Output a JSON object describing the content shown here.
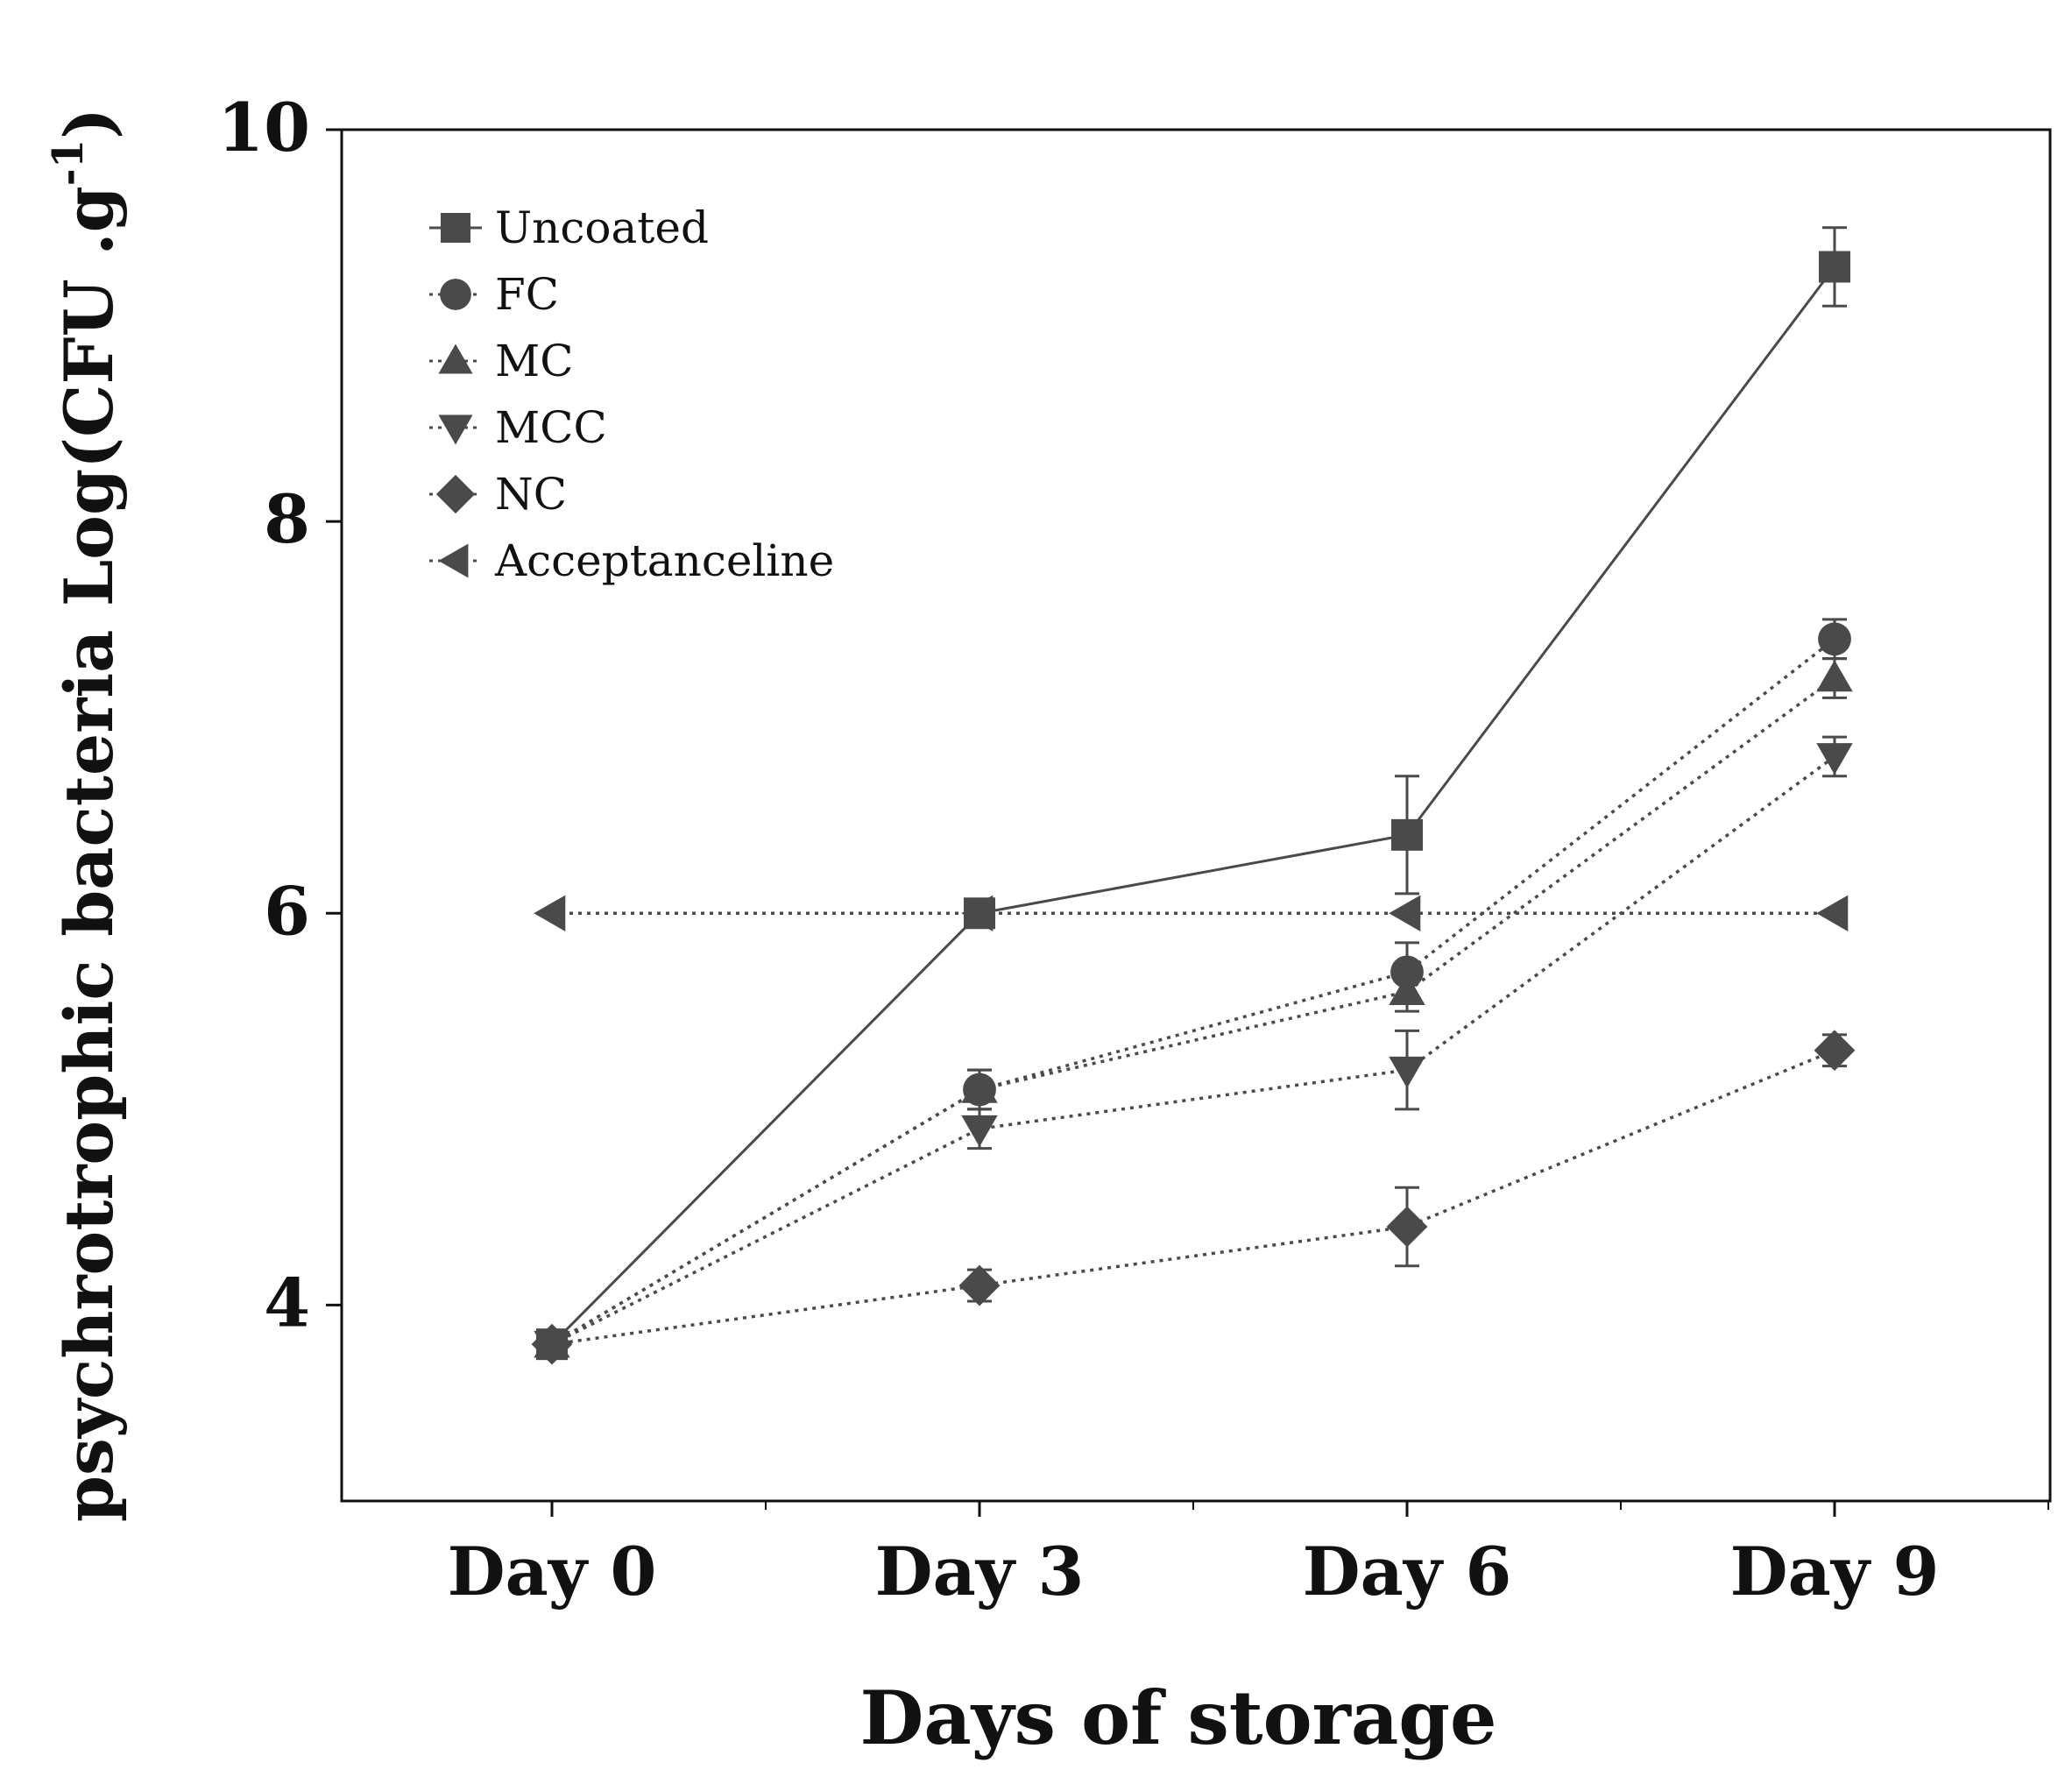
{
  "chart_data": {
    "type": "line",
    "title": "",
    "xlabel": "Days of storage",
    "ylabel": {
      "main": "psychrotrophic  bacteria Log(CFU .g",
      "superscript": "-1",
      "close": ")"
    },
    "categories": [
      "Day 0",
      "Day 3",
      "Day 6",
      "Day 9"
    ],
    "ylim": [
      3,
      10
    ],
    "yticks": [
      "4",
      "6",
      "8",
      "10"
    ],
    "grid": false,
    "legend_position": "top-left",
    "colors": {
      "series": "#4a4a4a",
      "axis": "#111111",
      "text": "#111111"
    },
    "series": [
      {
        "name": "Uncoated",
        "marker": "square",
        "line": "solid",
        "values": [
          3.8,
          6.0,
          6.4,
          9.3
        ],
        "errors": [
          0.05,
          0.05,
          0.3,
          0.2
        ]
      },
      {
        "name": "FC",
        "marker": "circle",
        "line": "dotted",
        "values": [
          3.8,
          5.1,
          5.7,
          7.4
        ],
        "errors": [
          0.05,
          0.1,
          0.15,
          0.1
        ]
      },
      {
        "name": "MC",
        "marker": "triangle-up",
        "line": "dotted",
        "values": [
          3.8,
          5.1,
          5.6,
          7.2
        ],
        "errors": [
          0.05,
          0.1,
          0.1,
          0.1
        ]
      },
      {
        "name": "MCC",
        "marker": "triangle-down",
        "line": "dotted",
        "values": [
          3.8,
          4.9,
          5.2,
          6.8
        ],
        "errors": [
          0.05,
          0.1,
          0.2,
          0.1
        ]
      },
      {
        "name": "NC",
        "marker": "diamond",
        "line": "dotted",
        "values": [
          3.8,
          4.1,
          4.4,
          5.3
        ],
        "errors": [
          0.05,
          0.08,
          0.2,
          0.08
        ]
      },
      {
        "name": "Acceptanceline",
        "marker": "triangle-left",
        "line": "dotted",
        "values": [
          6.0,
          6.0,
          6.0,
          6.0
        ],
        "errors": [
          0,
          0,
          0,
          0
        ]
      }
    ]
  }
}
